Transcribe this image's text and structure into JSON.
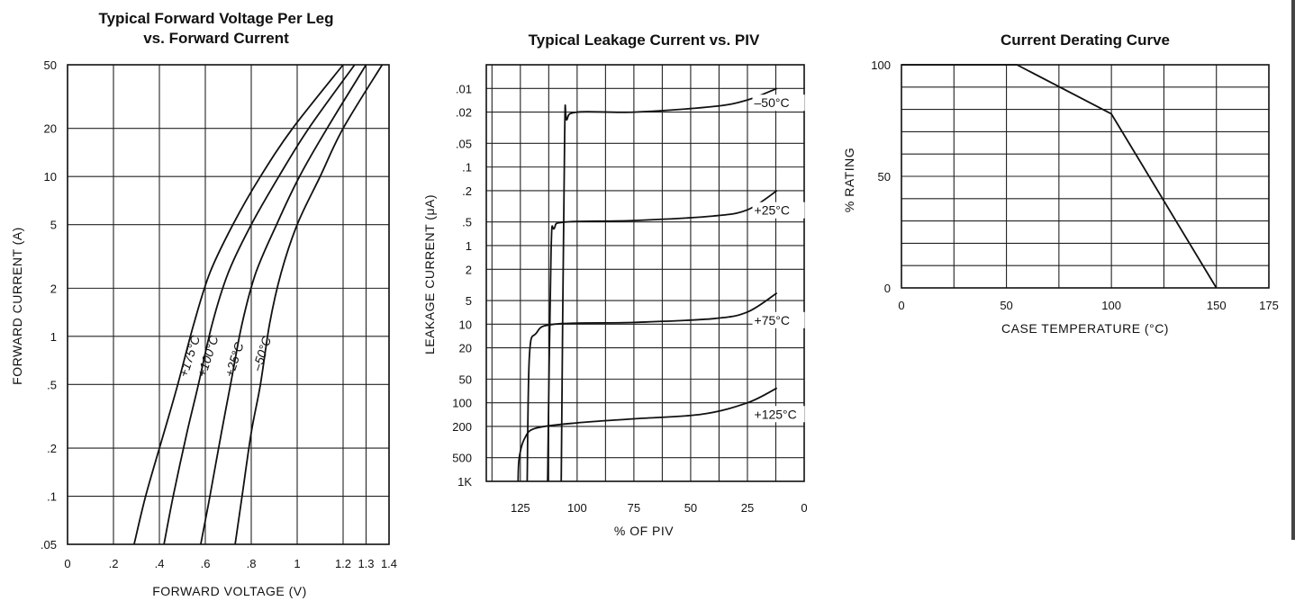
{
  "chart_data": [
    {
      "type": "line",
      "title_lines": [
        "Typical Forward Voltage Per Leg",
        "vs. Forward Current"
      ],
      "xlabel": "FORWARD VOLTAGE (V)",
      "ylabel": "FORWARD CURRENT (A)",
      "x_scale": "linear",
      "y_scale": "log",
      "xlim": [
        0,
        1.4
      ],
      "ylim": [
        0.05,
        50
      ],
      "x_ticks": [
        0,
        0.2,
        0.4,
        0.6,
        0.8,
        1.0,
        1.2,
        1.3,
        1.4
      ],
      "x_tick_labels": [
        "0",
        ".2",
        ".4",
        ".6",
        ".8",
        "1",
        "1.2",
        "1.3",
        "1.4"
      ],
      "y_ticks": [
        0.05,
        0.1,
        0.2,
        0.5,
        1,
        2,
        5,
        10,
        20,
        50
      ],
      "y_tick_labels": [
        ".05",
        ".1",
        ".2",
        ".5",
        "1",
        "2",
        "5",
        "10",
        "20",
        "50"
      ],
      "grid": true,
      "series": [
        {
          "name": "+175°C",
          "points": [
            [
              0.29,
              0.05
            ],
            [
              0.34,
              0.1
            ],
            [
              0.42,
              0.25
            ],
            [
              0.48,
              0.5
            ],
            [
              0.55,
              1.2
            ],
            [
              0.62,
              2.5
            ],
            [
              0.72,
              5
            ],
            [
              0.84,
              10
            ],
            [
              0.98,
              20
            ],
            [
              1.2,
              50
            ]
          ]
        },
        {
          "name": "+100°C",
          "points": [
            [
              0.42,
              0.05
            ],
            [
              0.46,
              0.1
            ],
            [
              0.52,
              0.25
            ],
            [
              0.57,
              0.5
            ],
            [
              0.63,
              1.2
            ],
            [
              0.7,
              2.5
            ],
            [
              0.8,
              5
            ],
            [
              0.92,
              10
            ],
            [
              1.05,
              20
            ],
            [
              1.25,
              50
            ]
          ]
        },
        {
          "name": "+25°C",
          "points": [
            [
              0.58,
              0.05
            ],
            [
              0.62,
              0.1
            ],
            [
              0.67,
              0.25
            ],
            [
              0.71,
              0.5
            ],
            [
              0.76,
              1.2
            ],
            [
              0.82,
              2.5
            ],
            [
              0.91,
              5
            ],
            [
              1.01,
              10
            ],
            [
              1.13,
              20
            ],
            [
              1.3,
              50
            ]
          ]
        },
        {
          "name": "-50°C",
          "points": [
            [
              0.73,
              0.05
            ],
            [
              0.76,
              0.1
            ],
            [
              0.8,
              0.25
            ],
            [
              0.84,
              0.5
            ],
            [
              0.88,
              1.2
            ],
            [
              0.93,
              2.5
            ],
            [
              1.0,
              5
            ],
            [
              1.1,
              10
            ],
            [
              1.2,
              20
            ],
            [
              1.37,
              50
            ]
          ]
        }
      ],
      "curve_labels": [
        "+175°C",
        "+100°C",
        "+25°C",
        "–50°C"
      ]
    },
    {
      "type": "line",
      "title": "Typical Leakage Current  vs. PIV",
      "xlabel": "% OF PIV",
      "ylabel": "LEAKAGE CURRENT (μA)",
      "x_reversed": true,
      "xlim": [
        140,
        0
      ],
      "x_ticks": [
        125,
        100,
        75,
        50,
        25,
        0
      ],
      "x_tick_labels": [
        "125",
        "100",
        "75",
        "50",
        "25",
        "0"
      ],
      "y_scale": "log",
      "y_reversed": true,
      "ylim": [
        0.005,
        1000
      ],
      "y_ticks": [
        0.01,
        0.02,
        0.05,
        0.1,
        0.2,
        0.5,
        1,
        2,
        5,
        10,
        20,
        50,
        100,
        200,
        500,
        1000
      ],
      "y_tick_labels": [
        ".01",
        ".02",
        ".05",
        ".1",
        ".2",
        ".5",
        "1",
        "2",
        "5",
        "10",
        "20",
        "50",
        "100",
        "200",
        "500",
        "1K"
      ],
      "grid": true,
      "series": [
        {
          "name": "–50°C",
          "points": [
            [
              107,
              1000
            ],
            [
              105.5,
              0.04
            ],
            [
              104.5,
              0.025
            ],
            [
              100,
              0.02
            ],
            [
              75,
              0.02
            ],
            [
              40,
              0.017
            ],
            [
              25,
              0.014
            ],
            [
              12,
              0.01
            ]
          ]
        },
        {
          "name": "+25°C",
          "points": [
            [
              113,
              1000
            ],
            [
              111.5,
              1.2
            ],
            [
              110,
              0.6
            ],
            [
              105,
              0.5
            ],
            [
              75,
              0.48
            ],
            [
              40,
              0.42
            ],
            [
              25,
              0.35
            ],
            [
              12,
              0.2
            ]
          ]
        },
        {
          "name": "+75°C",
          "points": [
            [
              122,
              1000
            ],
            [
              121,
              25
            ],
            [
              118,
              13
            ],
            [
              110,
              10
            ],
            [
              75,
              9.5
            ],
            [
              40,
              8.5
            ],
            [
              25,
              7
            ],
            [
              12,
              4
            ]
          ]
        },
        {
          "name": "+125°C",
          "points": [
            [
              126,
              1000
            ],
            [
              125.5,
              500
            ],
            [
              123,
              280
            ],
            [
              118,
              210
            ],
            [
              100,
              180
            ],
            [
              75,
              160
            ],
            [
              45,
              140
            ],
            [
              25,
              100
            ],
            [
              12,
              65
            ]
          ]
        }
      ],
      "curve_labels": [
        "–50°C",
        "+25°C",
        "+75°C",
        "+125°C"
      ]
    },
    {
      "type": "line",
      "title": "Current Derating Curve",
      "xlabel": "CASE TEMPERATURE (°C)",
      "ylabel": "% RATING",
      "xlim": [
        0,
        175
      ],
      "ylim": [
        0,
        100
      ],
      "x_ticks": [
        0,
        50,
        100,
        150,
        175
      ],
      "x_tick_labels": [
        "0",
        "50",
        "100",
        "150",
        "175"
      ],
      "y_ticks": [
        0,
        50,
        100
      ],
      "y_tick_labels": [
        "0",
        "50",
        "100"
      ],
      "grid": true,
      "series": [
        {
          "name": "",
          "points": [
            [
              0,
              100
            ],
            [
              55,
              100
            ],
            [
              100,
              78
            ],
            [
              150,
              0
            ]
          ]
        }
      ]
    }
  ]
}
